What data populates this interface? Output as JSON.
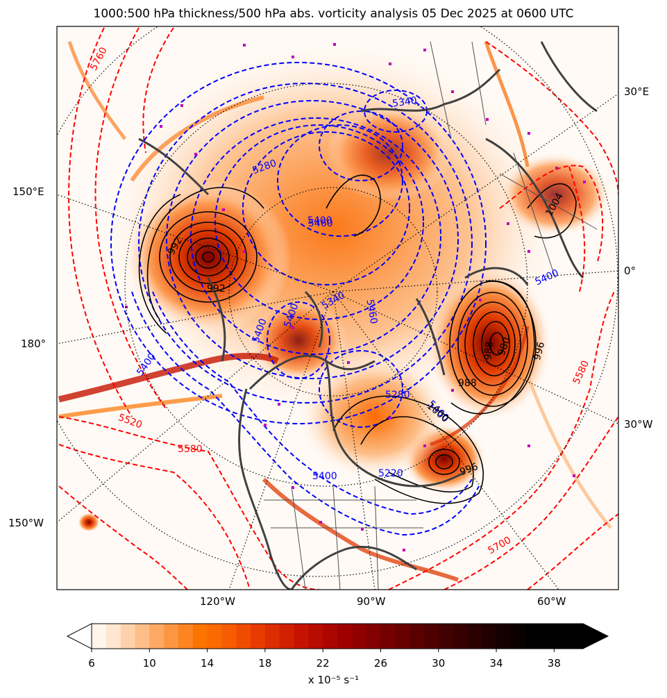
{
  "title": "1000:500 hPa thickness/500 hPa abs. vorticity analysis 05 Dec 2025 at 0600 UTC",
  "axis_labels": {
    "bottom": [
      "120°W",
      "90°W",
      "60°W"
    ],
    "left": [
      "150°E",
      "180°",
      "150°W"
    ],
    "right": [
      "30°E",
      "0°",
      "30°W"
    ]
  },
  "thickness_labels": {
    "red": [
      "5760",
      "5520",
      "5580",
      "5580",
      "5700"
    ],
    "blue": [
      "5340",
      "5400",
      "5280",
      "5460",
      "5400",
      "5400",
      "5460",
      "5280",
      "5340",
      "5400",
      "5220",
      "5400",
      "5460",
      "5400"
    ]
  },
  "mslp_labels": [
    "992",
    "988",
    "996",
    "1004",
    "996",
    "1000",
    "980",
    "988",
    "992"
  ],
  "colorbar": {
    "ticks": [
      "6",
      "10",
      "14",
      "18",
      "22",
      "26",
      "30",
      "34",
      "38"
    ],
    "unit_label": "x 10⁻⁵ s⁻¹",
    "colors": [
      "#fff5ec",
      "#fee6d0",
      "#fdd2ab",
      "#fdbe88",
      "#fda965",
      "#fd9640",
      "#fd8420",
      "#fb7400",
      "#fa6a00",
      "#f75c00",
      "#f04c00",
      "#e73c00",
      "#dc2d00",
      "#d02000",
      "#c41400",
      "#b80c00",
      "#ab0500",
      "#9e0000",
      "#900000",
      "#820000",
      "#750000",
      "#680000",
      "#5b0000",
      "#4e0000",
      "#420000",
      "#370000",
      "#2b0000",
      "#200000",
      "#150000",
      "#0a0000",
      "#000000",
      "#000000",
      "#000000",
      "#000000"
    ]
  },
  "colors": {
    "thickness_warm": "#ff0000",
    "thickness_cold": "#0000ff",
    "mslp": "#000000",
    "coast": "#404040",
    "markers": "#c000c0"
  }
}
